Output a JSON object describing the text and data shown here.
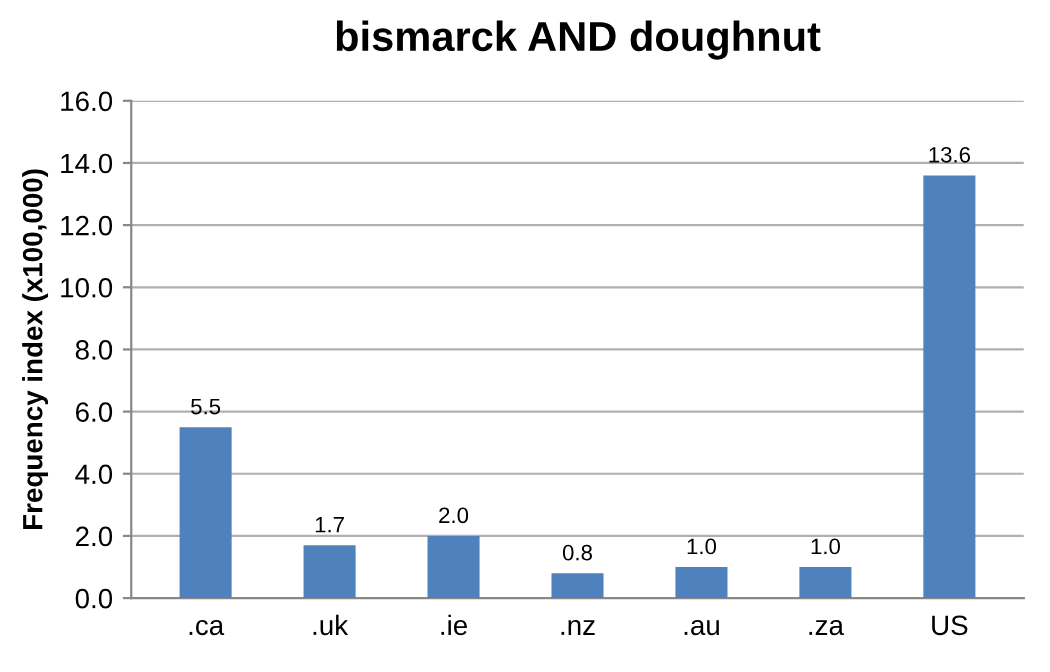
{
  "chart_data": {
    "type": "bar",
    "title": "bismarck AND doughnut",
    "ylabel": "Frequency index (x100,000)",
    "categories": [
      ".ca",
      ".uk",
      ".ie",
      ".nz",
      ".au",
      ".za",
      "US"
    ],
    "values": [
      5.5,
      1.7,
      2.0,
      0.8,
      1.0,
      1.0,
      13.6
    ],
    "value_labels": [
      "5.5",
      "1.7",
      "2.0",
      "0.8",
      "1.0",
      "1.0",
      "13.6"
    ],
    "color": "#4f81bd",
    "ylim": [
      0,
      16
    ],
    "yticks": [
      {
        "value": 0,
        "label": "0.0"
      },
      {
        "value": 2,
        "label": "2.0"
      },
      {
        "value": 4,
        "label": "4.0"
      },
      {
        "value": 6,
        "label": "6.0"
      },
      {
        "value": 8,
        "label": "8.0"
      },
      {
        "value": 10,
        "label": "10.0"
      },
      {
        "value": 12,
        "label": "12.0"
      },
      {
        "value": 14,
        "label": "14.0"
      },
      {
        "value": 16,
        "label": "16.0"
      }
    ],
    "grid": "y",
    "legend": false
  }
}
